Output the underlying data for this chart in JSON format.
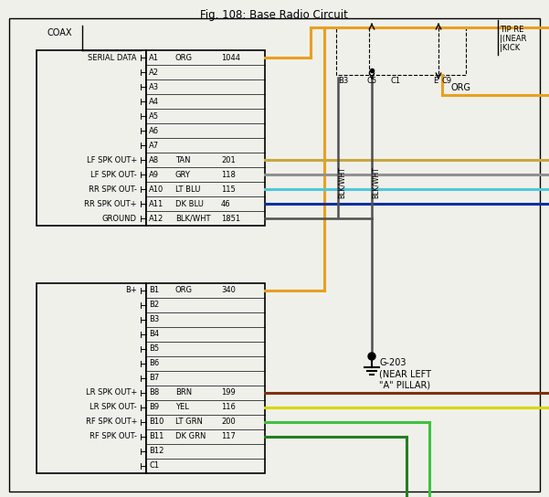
{
  "title": "Fig. 108: Base Radio Circuit",
  "bg_color": "#f0f0eb",
  "wire_colors": {
    "orange": "#e8a020",
    "tan": "#c8a840",
    "gray": "#909090",
    "lt_blue": "#50c8d8",
    "dk_blue": "#1030a0",
    "blk_wht": "#505050",
    "brown": "#803010",
    "yellow": "#d8d800",
    "lt_green": "#40c040",
    "dk_green": "#208020"
  },
  "pin_rows_A": [
    {
      "pin": "A1",
      "color": "ORG",
      "circuit": "1044",
      "label": ""
    },
    {
      "pin": "A2",
      "color": "",
      "circuit": "",
      "label": ""
    },
    {
      "pin": "A3",
      "color": "",
      "circuit": "",
      "label": ""
    },
    {
      "pin": "A4",
      "color": "",
      "circuit": "",
      "label": ""
    },
    {
      "pin": "A5",
      "color": "",
      "circuit": "",
      "label": ""
    },
    {
      "pin": "A6",
      "color": "",
      "circuit": "",
      "label": ""
    },
    {
      "pin": "A7",
      "color": "",
      "circuit": "",
      "label": ""
    },
    {
      "pin": "A8",
      "color": "TAN",
      "circuit": "201",
      "label": "LF SPK OUT+"
    },
    {
      "pin": "A9",
      "color": "GRY",
      "circuit": "118",
      "label": "LF SPK OUT-"
    },
    {
      "pin": "A10",
      "color": "LT BLU",
      "circuit": "115",
      "label": "RR SPK OUT-"
    },
    {
      "pin": "A11",
      "color": "DK BLU",
      "circuit": "46",
      "label": "RR SPK OUT+"
    },
    {
      "pin": "A12",
      "color": "BLK/WHT",
      "circuit": "1851",
      "label": "GROUND"
    }
  ],
  "pin_rows_B": [
    {
      "pin": "B1",
      "color": "ORG",
      "circuit": "340",
      "label": "B+"
    },
    {
      "pin": "B2",
      "color": "",
      "circuit": "",
      "label": ""
    },
    {
      "pin": "B3",
      "color": "",
      "circuit": "",
      "label": ""
    },
    {
      "pin": "B4",
      "color": "",
      "circuit": "",
      "label": ""
    },
    {
      "pin": "B5",
      "color": "",
      "circuit": "",
      "label": ""
    },
    {
      "pin": "B6",
      "color": "",
      "circuit": "",
      "label": ""
    },
    {
      "pin": "B7",
      "color": "",
      "circuit": "",
      "label": ""
    },
    {
      "pin": "B8",
      "color": "BRN",
      "circuit": "199",
      "label": "LR SPK OUT+"
    },
    {
      "pin": "B9",
      "color": "YEL",
      "circuit": "116",
      "label": "LR SPK OUT-"
    },
    {
      "pin": "B10",
      "color": "LT GRN",
      "circuit": "200",
      "label": "RF SPK OUT+"
    },
    {
      "pin": "B11",
      "color": "DK GRN",
      "circuit": "117",
      "label": "RF SPK OUT-"
    },
    {
      "pin": "B12",
      "color": "",
      "circuit": "",
      "label": ""
    },
    {
      "pin": "C1",
      "color": "",
      "circuit": "",
      "label": ""
    }
  ]
}
